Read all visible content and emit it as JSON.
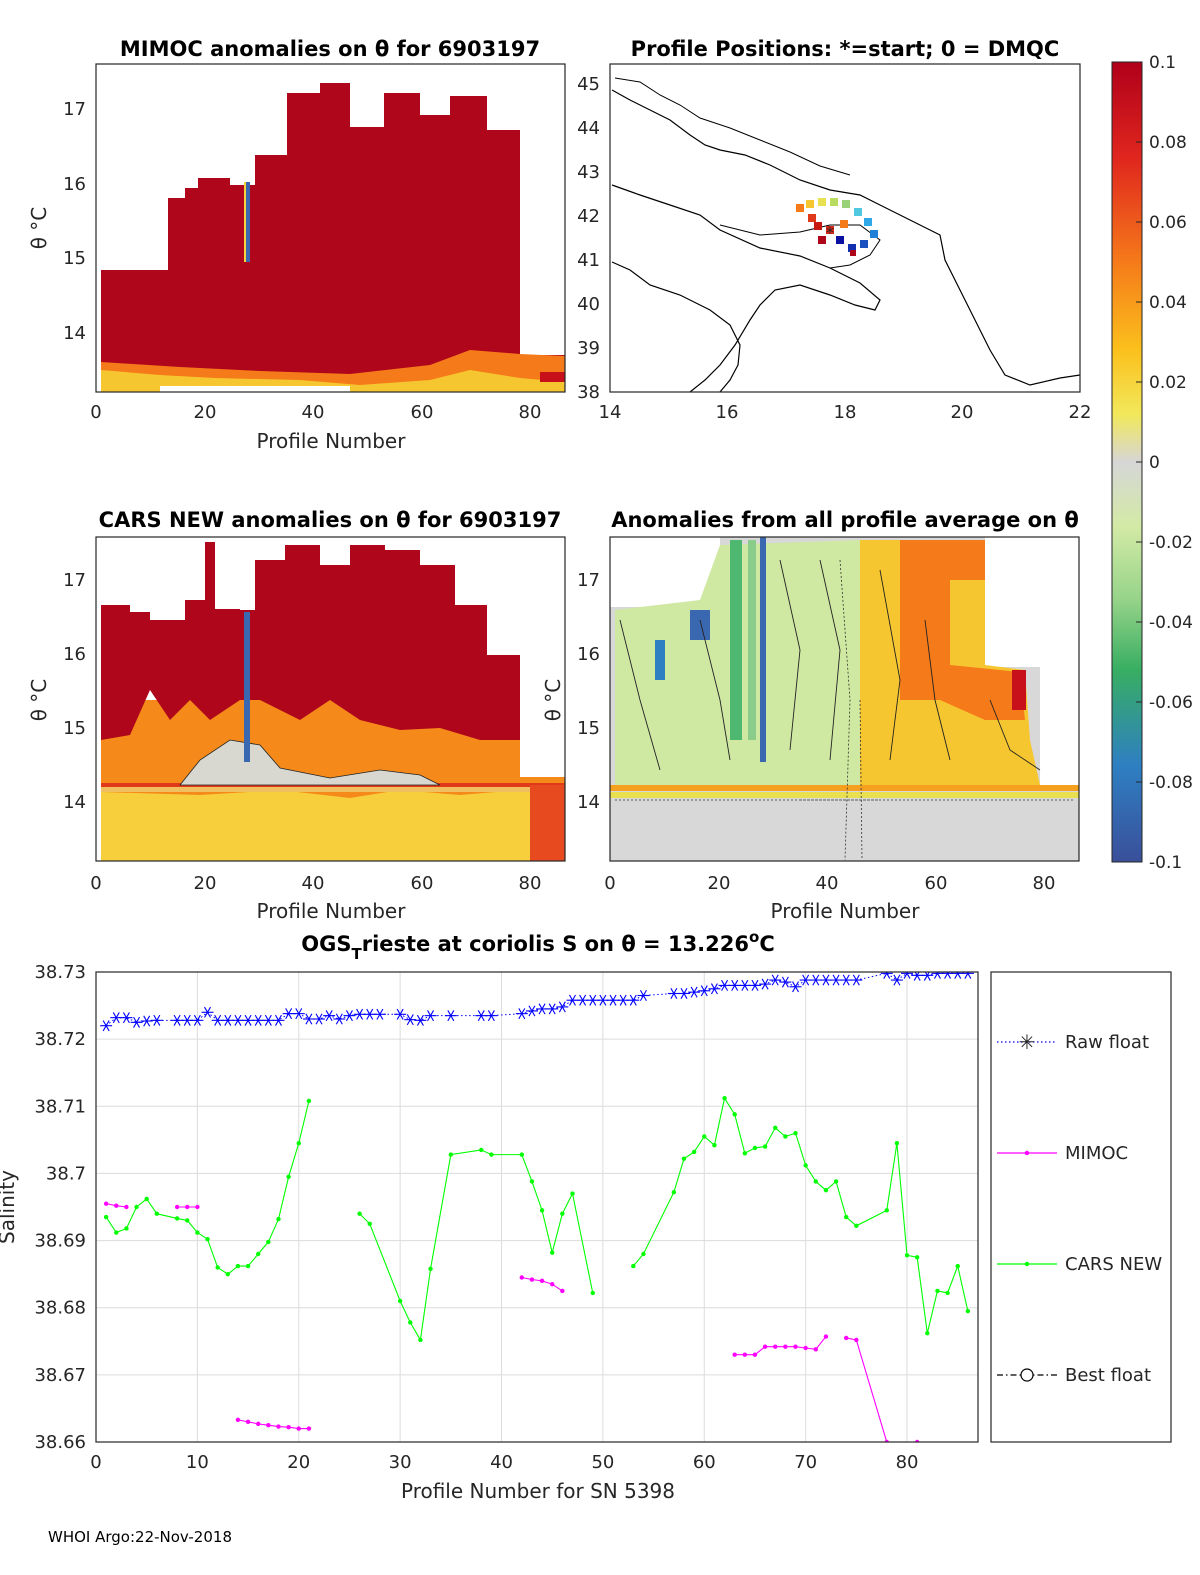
{
  "footer": "WHOI Argo:22-Nov-2018",
  "colorbar": {
    "ticks": [
      "0.1",
      "0.08",
      "0.06",
      "0.04",
      "0.02",
      "0",
      "-0.02",
      "-0.04",
      "-0.06",
      "-0.08",
      "-0.1"
    ],
    "range": [
      -0.1,
      0.1
    ]
  },
  "chart_data": [
    {
      "id": "mimoc",
      "type": "heatmap",
      "title": "MIMOC anomalies on θ  for 6903197",
      "xlabel": "Profile Number",
      "ylabel": "θ °C",
      "xlim": [
        0,
        86
      ],
      "ylim": [
        13.2,
        17.5
      ],
      "xticks": [
        "0",
        "20",
        "40",
        "60",
        "80"
      ],
      "yticks": [
        "14",
        "15",
        "16",
        "17"
      ]
    },
    {
      "id": "positions",
      "type": "scatter",
      "title": "Profile Positions: *=start; 0 = DMQC",
      "xlim": [
        14,
        22
      ],
      "ylim": [
        38,
        45.4
      ],
      "xticks": [
        "14",
        "16",
        "18",
        "20",
        "22"
      ],
      "yticks": [
        "38",
        "39",
        "40",
        "41",
        "42",
        "43",
        "44",
        "45"
      ]
    },
    {
      "id": "cars",
      "type": "heatmap",
      "title": "CARS NEW anomalies on θ for 6903197",
      "xlabel": "Profile Number",
      "ylabel": "θ °C",
      "xlim": [
        0,
        86
      ],
      "ylim": [
        13.2,
        17.5
      ],
      "xticks": [
        "0",
        "20",
        "40",
        "60",
        "80"
      ],
      "yticks": [
        "14",
        "15",
        "16",
        "17"
      ]
    },
    {
      "id": "avg",
      "type": "heatmap",
      "title": "Anomalies from all profile average on θ",
      "xlabel": "Profile Number",
      "ylabel": "θ °C",
      "xlim": [
        0,
        86
      ],
      "ylim": [
        13.2,
        17.5
      ],
      "xticks": [
        "0",
        "20",
        "40",
        "60",
        "80"
      ],
      "yticks": [
        "14",
        "15",
        "16",
        "17"
      ]
    },
    {
      "id": "salinity",
      "type": "line",
      "title_main": "OGS",
      "title_sub": "T",
      "title_rest": "rieste at coriolis S on θ = 13.226",
      "title_sup": "o",
      "title_end": "C",
      "xlabel": "Profile Number for SN 5398",
      "ylabel": "Salinity",
      "xlim": [
        0,
        87
      ],
      "ylim": [
        38.66,
        38.73
      ],
      "xticks": [
        "0",
        "10",
        "20",
        "30",
        "40",
        "50",
        "60",
        "70",
        "80"
      ],
      "yticks": [
        "38.66",
        "38.67",
        "38.68",
        "38.69",
        "38.7",
        "38.71",
        "38.72",
        "38.73"
      ],
      "series": [
        {
          "name": "Raw float",
          "color": "#0000ff",
          "points": [
            [
              1,
              38.722
            ],
            [
              2,
              38.7232
            ],
            [
              3,
              38.7232
            ],
            [
              4,
              38.7225
            ],
            [
              5,
              38.7227
            ],
            [
              6,
              38.7228
            ],
            [
              8,
              38.7228
            ],
            [
              9,
              38.7228
            ],
            [
              10,
              38.7228
            ],
            [
              11,
              38.724
            ],
            [
              12,
              38.7228
            ],
            [
              13,
              38.7228
            ],
            [
              14,
              38.7228
            ],
            [
              15,
              38.7228
            ],
            [
              16,
              38.7228
            ],
            [
              17,
              38.7228
            ],
            [
              18,
              38.7228
            ],
            [
              19,
              38.7238
            ],
            [
              20,
              38.7238
            ],
            [
              21,
              38.723
            ],
            [
              22,
              38.723
            ],
            [
              23,
              38.7235
            ],
            [
              24,
              38.723
            ],
            [
              25,
              38.7235
            ],
            [
              26,
              38.7237
            ],
            [
              27,
              38.7237
            ],
            [
              28,
              38.7237
            ],
            [
              30,
              38.7237
            ],
            [
              31,
              38.7229
            ],
            [
              32,
              38.7228
            ],
            [
              33,
              38.7235
            ],
            [
              35,
              38.7235
            ],
            [
              38,
              38.7235
            ],
            [
              39,
              38.7235
            ],
            [
              42,
              38.7238
            ],
            [
              43,
              38.7242
            ],
            [
              44,
              38.7245
            ],
            [
              45,
              38.7245
            ],
            [
              46,
              38.7248
            ],
            [
              47,
              38.7258
            ],
            [
              48,
              38.7258
            ],
            [
              49,
              38.7258
            ],
            [
              50,
              38.7258
            ],
            [
              51,
              38.7258
            ],
            [
              52,
              38.7258
            ],
            [
              53,
              38.7258
            ],
            [
              54,
              38.7265
            ],
            [
              57,
              38.7268
            ],
            [
              58,
              38.7268
            ],
            [
              59,
              38.727
            ],
            [
              60,
              38.7272
            ],
            [
              61,
              38.7275
            ],
            [
              62,
              38.728
            ],
            [
              63,
              38.728
            ],
            [
              64,
              38.728
            ],
            [
              65,
              38.728
            ],
            [
              66,
              38.7282
            ],
            [
              67,
              38.7288
            ],
            [
              68,
              38.7285
            ],
            [
              69,
              38.7278
            ],
            [
              70,
              38.7288
            ],
            [
              71,
              38.7288
            ],
            [
              72,
              38.7288
            ],
            [
              73,
              38.7288
            ],
            [
              74,
              38.7288
            ],
            [
              75,
              38.7288
            ],
            [
              78,
              38.7298
            ],
            [
              79,
              38.7288
            ],
            [
              80,
              38.7298
            ],
            [
              81,
              38.7295
            ],
            [
              82,
              38.7295
            ],
            [
              83,
              38.7298
            ],
            [
              84,
              38.7298
            ],
            [
              85,
              38.7298
            ],
            [
              86,
              38.7298
            ]
          ]
        },
        {
          "name": "MIMOC",
          "color": "#ff00ff",
          "segments": [
            [
              [
                1,
                38.6955
              ],
              [
                2,
                38.6952
              ],
              [
                3,
                38.695
              ]
            ],
            [
              [
                8,
                38.695
              ],
              [
                9,
                38.695
              ],
              [
                10,
                38.695
              ]
            ],
            [
              [
                14,
                38.6633
              ],
              [
                15,
                38.663
              ],
              [
                16,
                38.6627
              ],
              [
                17,
                38.6625
              ],
              [
                18,
                38.6623
              ],
              [
                19,
                38.6622
              ],
              [
                20,
                38.662
              ],
              [
                21,
                38.662
              ]
            ],
            [
              [
                42,
                38.6845
              ],
              [
                43,
                38.6842
              ],
              [
                44,
                38.684
              ],
              [
                45,
                38.6835
              ],
              [
                46,
                38.6825
              ]
            ],
            [
              [
                63,
                38.673
              ],
              [
                64,
                38.673
              ],
              [
                65,
                38.673
              ],
              [
                66,
                38.6742
              ],
              [
                67,
                38.6742
              ],
              [
                68,
                38.6742
              ],
              [
                69,
                38.6742
              ],
              [
                70,
                38.674
              ],
              [
                71,
                38.6738
              ],
              [
                72,
                38.6757
              ]
            ],
            [
              [
                74,
                38.6755
              ],
              [
                75,
                38.6752
              ],
              [
                78,
                38.66
              ]
            ],
            [
              [
                81,
                38.66
              ]
            ]
          ]
        },
        {
          "name": "CARS NEW",
          "color": "#00ff00",
          "segments": [
            [
              [
                1,
                38.6935
              ],
              [
                2,
                38.6912
              ],
              [
                3,
                38.6918
              ],
              [
                4,
                38.695
              ],
              [
                5,
                38.6962
              ],
              [
                6,
                38.694
              ],
              [
                8,
                38.6933
              ],
              [
                9,
                38.693
              ],
              [
                10,
                38.6912
              ],
              [
                11,
                38.6902
              ],
              [
                12,
                38.686
              ],
              [
                13,
                38.685
              ],
              [
                14,
                38.6862
              ],
              [
                15,
                38.6862
              ],
              [
                16,
                38.688
              ],
              [
                17,
                38.6898
              ],
              [
                18,
                38.6932
              ],
              [
                19,
                38.6995
              ],
              [
                20,
                38.7045
              ],
              [
                21,
                38.7108
              ]
            ],
            [
              [
                26,
                38.694
              ],
              [
                27,
                38.6925
              ],
              [
                30,
                38.681
              ],
              [
                31,
                38.6778
              ],
              [
                32,
                38.6752
              ],
              [
                33,
                38.6858
              ],
              [
                35,
                38.7028
              ],
              [
                38,
                38.7035
              ],
              [
                39,
                38.7028
              ],
              [
                42,
                38.7028
              ],
              [
                43,
                38.6988
              ],
              [
                44,
                38.6945
              ],
              [
                45,
                38.6882
              ],
              [
                46,
                38.694
              ],
              [
                47,
                38.697
              ],
              [
                49,
                38.6822
              ]
            ],
            [
              [
                53,
                38.6862
              ],
              [
                54,
                38.688
              ],
              [
                57,
                38.6972
              ],
              [
                58,
                38.7022
              ],
              [
                59,
                38.7032
              ],
              [
                60,
                38.7055
              ],
              [
                61,
                38.7042
              ],
              [
                62,
                38.7112
              ],
              [
                63,
                38.7088
              ],
              [
                64,
                38.703
              ],
              [
                65,
                38.7038
              ],
              [
                66,
                38.704
              ],
              [
                67,
                38.7068
              ],
              [
                68,
                38.7055
              ],
              [
                69,
                38.706
              ],
              [
                70,
                38.7012
              ],
              [
                71,
                38.6988
              ],
              [
                72,
                38.6975
              ],
              [
                73,
                38.6988
              ],
              [
                74,
                38.6935
              ],
              [
                75,
                38.6922
              ],
              [
                78,
                38.6945
              ],
              [
                79,
                38.7045
              ],
              [
                80,
                38.6878
              ],
              [
                81,
                38.6875
              ],
              [
                82,
                38.6762
              ],
              [
                83,
                38.6825
              ],
              [
                84,
                38.6822
              ],
              [
                85,
                38.6862
              ],
              [
                86,
                38.6795
              ]
            ]
          ]
        },
        {
          "name": "Best float",
          "color": "#000000",
          "points": []
        }
      ]
    }
  ]
}
